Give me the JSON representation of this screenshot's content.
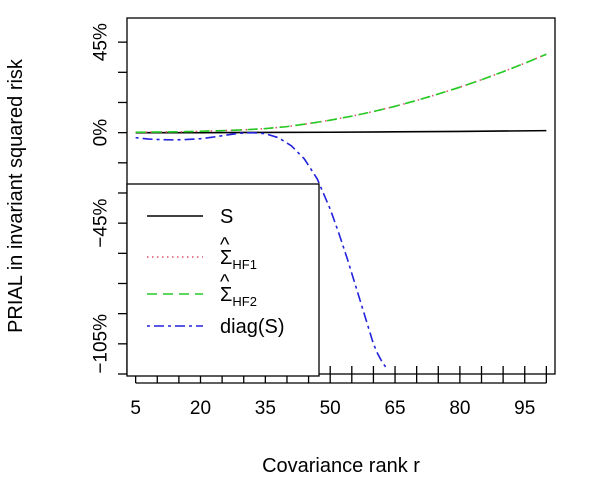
{
  "chart_data": {
    "type": "line",
    "title": "",
    "xlabel": "Covariance rank r",
    "ylabel": "PRIAL in invariant squared risk",
    "xlim": [
      3,
      102
    ],
    "ylim": [
      -120,
      57
    ],
    "x_ticks": [
      5,
      10,
      15,
      20,
      25,
      30,
      35,
      40,
      45,
      50,
      55,
      60,
      65,
      70,
      75,
      80,
      85,
      90,
      95,
      100
    ],
    "x_tick_labels": [
      {
        "value": 5,
        "label": "5"
      },
      {
        "value": 20,
        "label": "20"
      },
      {
        "value": 35,
        "label": "35"
      },
      {
        "value": 50,
        "label": "50"
      },
      {
        "value": 65,
        "label": "65"
      },
      {
        "value": 80,
        "label": "80"
      },
      {
        "value": 95,
        "label": "95"
      }
    ],
    "y_ticks": [
      -120,
      -105,
      -90,
      -75,
      -60,
      -45,
      -30,
      -15,
      0,
      15,
      30,
      45
    ],
    "y_tick_labels": [
      {
        "value": -105,
        "label": "−105%"
      },
      {
        "value": -45,
        "label": "−45%"
      },
      {
        "value": 0,
        "label": "0%"
      },
      {
        "value": 45,
        "label": "45%"
      }
    ],
    "legend_position": "bottom-left",
    "series": [
      {
        "name": "S",
        "color": "#000000",
        "dash": "solid",
        "x": [
          5,
          20,
          35,
          50,
          65,
          80,
          100
        ],
        "y": [
          0,
          0,
          0.1,
          0.2,
          0.4,
          0.6,
          1
        ]
      },
      {
        "name": "ΣHF1",
        "color": "#df536b",
        "dash": "dotted",
        "x": [
          5,
          10,
          15,
          20,
          25,
          30,
          35,
          40,
          45,
          50,
          55,
          60,
          65,
          70,
          75,
          80,
          85,
          90,
          95,
          100
        ],
        "y": [
          0.2,
          0.3,
          0.4,
          0.7,
          1,
          1.4,
          2,
          3,
          4.5,
          6.2,
          8.2,
          10.5,
          13.1,
          16,
          19.2,
          22.6,
          26.3,
          30.3,
          34.5,
          39
        ]
      },
      {
        "name": "ΣHF2",
        "color": "#22cc22",
        "dash": "dashed",
        "x": [
          5,
          10,
          15,
          20,
          25,
          30,
          35,
          40,
          45,
          50,
          55,
          60,
          65,
          70,
          75,
          80,
          85,
          90,
          95,
          100
        ],
        "y": [
          0.2,
          0.3,
          0.4,
          0.7,
          1,
          1.4,
          2,
          3,
          4.5,
          6.2,
          8.2,
          10.5,
          13.1,
          16,
          19.2,
          22.6,
          26.3,
          30.3,
          34.5,
          39
        ]
      },
      {
        "name": "diag(S)",
        "color": "#2222dd",
        "dash": "dashdot",
        "x": [
          5,
          8,
          11,
          14,
          17,
          20,
          23,
          26,
          29,
          32,
          35,
          38,
          41,
          44,
          47,
          50,
          52,
          54,
          56,
          58,
          59,
          60,
          61,
          62,
          63
        ],
        "y": [
          -2.5,
          -3.2,
          -3.5,
          -3.6,
          -3.4,
          -3,
          -2.2,
          -1.2,
          -0.3,
          0,
          -0.5,
          -2.5,
          -6.5,
          -13,
          -23,
          -38,
          -50,
          -63,
          -77,
          -91,
          -98,
          -105,
          -110,
          -114,
          -117
        ]
      }
    ],
    "legend": {
      "entries": [
        {
          "label": "S",
          "sub": ""
        },
        {
          "label": "Σ",
          "sub": "HF1"
        },
        {
          "label": "Σ",
          "sub": "HF2"
        },
        {
          "label": "diag(S)",
          "sub": ""
        }
      ]
    }
  }
}
